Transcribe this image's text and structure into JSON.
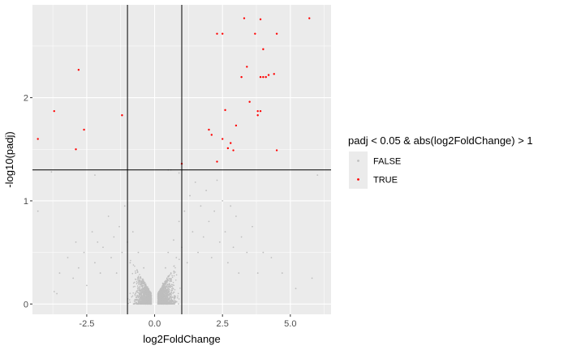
{
  "chart_data": {
    "type": "scatter",
    "title": "",
    "xlabel": "log2FoldChange",
    "ylabel": "-log10(padj)",
    "xlim": [
      -4.5,
      6.5
    ],
    "ylim": [
      -0.1,
      2.9
    ],
    "xticks": [
      -2.5,
      0.0,
      2.5,
      5.0
    ],
    "xtick_labels": [
      "-2.5",
      "0.0",
      "2.5",
      "5.0"
    ],
    "yticks": [
      0,
      1,
      2
    ],
    "ytick_labels": [
      "0",
      "1",
      "2"
    ],
    "grid": true,
    "reference_lines": {
      "vertical": [
        -1,
        1
      ],
      "horizontal": [
        1.3
      ]
    },
    "legend": {
      "title": "padj < 0.05 & abs(log2FoldChange) > 1",
      "placement": "right",
      "entries": [
        {
          "label": "FALSE",
          "color": "#bebebe"
        },
        {
          "label": "TRUE",
          "color": "#ff0000"
        }
      ]
    },
    "series": [
      {
        "name": "FALSE",
        "color": "#bebebe",
        "points": [
          [
            -4.3,
            0.9
          ],
          [
            -3.8,
            1.28
          ],
          [
            -3.7,
            0.12
          ],
          [
            -3.6,
            0.1
          ],
          [
            -3.5,
            0.3
          ],
          [
            -3.2,
            0.45
          ],
          [
            -3.0,
            0.25
          ],
          [
            -2.9,
            0.6
          ],
          [
            -2.8,
            0.35
          ],
          [
            -2.6,
            0.5
          ],
          [
            -2.5,
            0.18
          ],
          [
            -2.3,
            0.7
          ],
          [
            -2.2,
            0.4
          ],
          [
            -2.2,
            1.25
          ],
          [
            -2.1,
            0.6
          ],
          [
            -2.0,
            0.3
          ],
          [
            -1.9,
            0.55
          ],
          [
            -1.7,
            0.85
          ],
          [
            -1.6,
            0.45
          ],
          [
            -1.5,
            0.65
          ],
          [
            -1.4,
            0.3
          ],
          [
            -1.3,
            0.75
          ],
          [
            -1.2,
            0.5
          ],
          [
            -1.1,
            0.95
          ],
          [
            -1.0,
            0.6
          ],
          [
            -0.9,
            0.4
          ],
          [
            -0.8,
            0.7
          ],
          [
            -0.7,
            0.3
          ],
          [
            -0.6,
            0.5
          ],
          [
            -0.5,
            0.22
          ],
          [
            -0.4,
            0.35
          ],
          [
            -0.3,
            0.15
          ],
          [
            0.3,
            0.2
          ],
          [
            0.4,
            0.35
          ],
          [
            0.5,
            0.5
          ],
          [
            0.6,
            0.3
          ],
          [
            0.7,
            0.62
          ],
          [
            0.8,
            0.45
          ],
          [
            0.9,
            0.8
          ],
          [
            1.0,
            0.55
          ],
          [
            1.1,
            0.9
          ],
          [
            1.2,
            0.4
          ],
          [
            1.3,
            1.05
          ],
          [
            1.4,
            0.7
          ],
          [
            1.5,
            1.18
          ],
          [
            1.6,
            0.5
          ],
          [
            1.7,
            0.95
          ],
          [
            1.8,
            0.65
          ],
          [
            1.9,
            1.1
          ],
          [
            2.0,
            0.8
          ],
          [
            2.1,
            0.45
          ],
          [
            2.2,
            0.9
          ],
          [
            2.3,
            1.2
          ],
          [
            2.4,
            0.6
          ],
          [
            2.5,
            1.0
          ],
          [
            2.6,
            0.7
          ],
          [
            2.7,
            0.4
          ],
          [
            2.8,
            0.95
          ],
          [
            2.9,
            0.55
          ],
          [
            3.0,
            0.85
          ],
          [
            3.1,
            0.3
          ],
          [
            3.2,
            0.65
          ],
          [
            3.4,
            0.5
          ],
          [
            3.6,
            0.75
          ],
          [
            3.8,
            0.3
          ],
          [
            4.0,
            0.5
          ],
          [
            4.3,
            0.45
          ],
          [
            4.7,
            0.3
          ],
          [
            5.2,
            0.15
          ],
          [
            5.8,
            0.25
          ],
          [
            6.0,
            1.25
          ],
          [
            0.5,
            1.3
          ],
          [
            0.6,
            1.3
          ],
          [
            0.9,
            1.27
          ]
        ]
      },
      {
        "name": "TRUE",
        "color": "#ff0000",
        "points": [
          [
            -4.3,
            1.6
          ],
          [
            -3.7,
            1.87
          ],
          [
            -2.9,
            1.5
          ],
          [
            -2.8,
            2.27
          ],
          [
            -2.6,
            1.69
          ],
          [
            -1.2,
            1.83
          ],
          [
            1.0,
            1.36
          ],
          [
            2.0,
            1.69
          ],
          [
            2.1,
            1.64
          ],
          [
            2.3,
            2.62
          ],
          [
            2.3,
            1.38
          ],
          [
            2.5,
            2.62
          ],
          [
            2.5,
            1.6
          ],
          [
            2.6,
            1.88
          ],
          [
            2.7,
            1.51
          ],
          [
            2.8,
            1.56
          ],
          [
            2.9,
            1.49
          ],
          [
            3.0,
            1.73
          ],
          [
            3.2,
            2.2
          ],
          [
            3.3,
            2.77
          ],
          [
            3.4,
            2.3
          ],
          [
            3.5,
            1.96
          ],
          [
            3.7,
            2.62
          ],
          [
            3.8,
            1.87
          ],
          [
            3.8,
            1.83
          ],
          [
            3.9,
            1.87
          ],
          [
            3.9,
            2.76
          ],
          [
            3.9,
            2.2
          ],
          [
            4.0,
            2.47
          ],
          [
            4.0,
            2.2
          ],
          [
            4.1,
            2.2
          ],
          [
            4.2,
            2.22
          ],
          [
            4.4,
            2.23
          ],
          [
            4.5,
            2.62
          ],
          [
            4.5,
            1.49
          ],
          [
            5.7,
            2.77
          ]
        ]
      }
    ]
  }
}
